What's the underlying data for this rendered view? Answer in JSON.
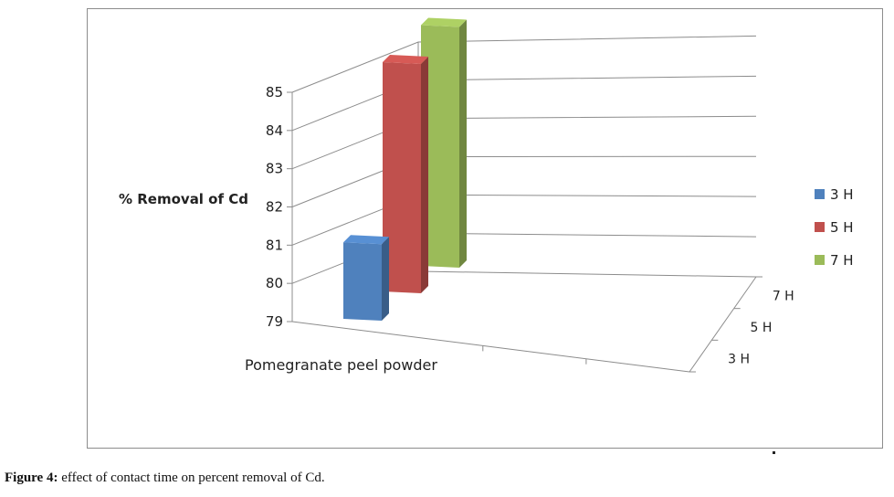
{
  "chart_data": {
    "type": "bar",
    "categories": [
      "Pomegranate peel powder"
    ],
    "series": [
      {
        "name": "3 H",
        "values": [
          81
        ],
        "color": "#4f81bd"
      },
      {
        "name": "5 H",
        "values": [
          85
        ],
        "color": "#c0504d"
      },
      {
        "name": "7 H",
        "values": [
          85.3
        ],
        "color": "#9bbb59"
      }
    ],
    "depth_labels": [
      "3 H",
      "5 H",
      "7 H"
    ],
    "ylabel": "% Removal of Cd",
    "xlabel": "",
    "title": "",
    "ylim": [
      79,
      85
    ],
    "yticks": [
      "79",
      "80",
      "81",
      "82",
      "83",
      "84",
      "85"
    ],
    "grid": true,
    "legend": "right",
    "projection": "3d"
  },
  "caption": {
    "label": "Figure 4:",
    "text": " effect of contact time on percent removal of Cd."
  }
}
